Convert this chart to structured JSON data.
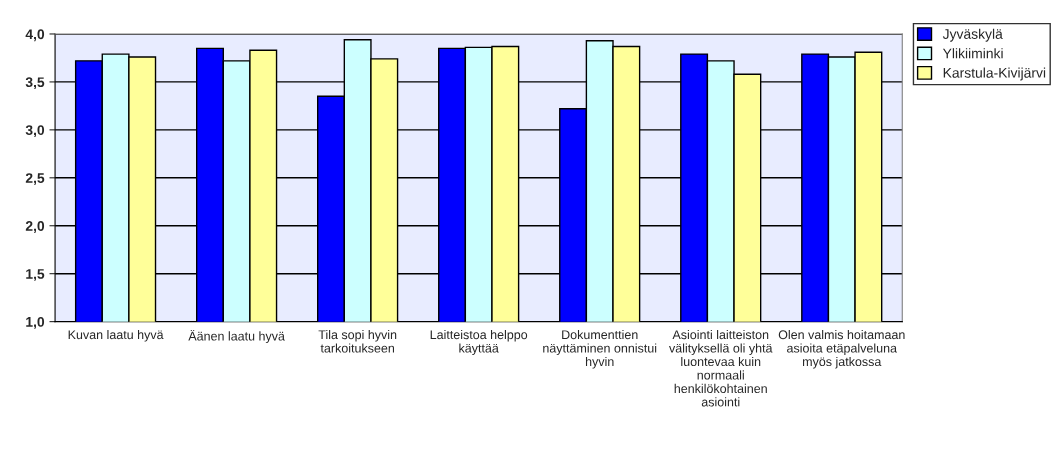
{
  "chart_data": {
    "type": "bar",
    "categories": [
      "Kuvan laatu hyvä",
      "Äänen laatu hyvä",
      "Tila sopi hyvin tarkoitukseen",
      "Laitteistoa helppo käyttää",
      "Dokumenttien näyttäminen onnistui hyvin",
      "Asiointi laitteiston välityksellä oli yhtä luontevaa kuin normaali henkilökohtainen asiointi",
      "Olen valmis hoitamaan asioita etäpalveluna myös jatkossa"
    ],
    "series": [
      {
        "name": "Jyväskylä",
        "color": "#0000ff",
        "values": [
          3.72,
          3.85,
          3.35,
          3.85,
          3.22,
          3.79,
          3.79
        ]
      },
      {
        "name": "Ylikiiminki",
        "color": "#ccffff",
        "values": [
          3.79,
          3.72,
          3.94,
          3.86,
          3.93,
          3.72,
          3.76
        ]
      },
      {
        "name": "Karstula-Kivijärvi",
        "color": "#ffff99",
        "values": [
          3.76,
          3.83,
          3.74,
          3.87,
          3.87,
          3.58,
          3.81
        ]
      }
    ],
    "ylim": [
      1.0,
      4.0
    ],
    "yticks": [
      {
        "value": 1.0,
        "label": "1,0"
      },
      {
        "value": 1.5,
        "label": "1,5"
      },
      {
        "value": 2.0,
        "label": "2,0"
      },
      {
        "value": 2.5,
        "label": "2,5"
      },
      {
        "value": 3.0,
        "label": "3,0"
      },
      {
        "value": 3.5,
        "label": "3,5"
      },
      {
        "value": 4.0,
        "label": "4,0"
      }
    ],
    "grid": "y",
    "legend": "top right"
  }
}
